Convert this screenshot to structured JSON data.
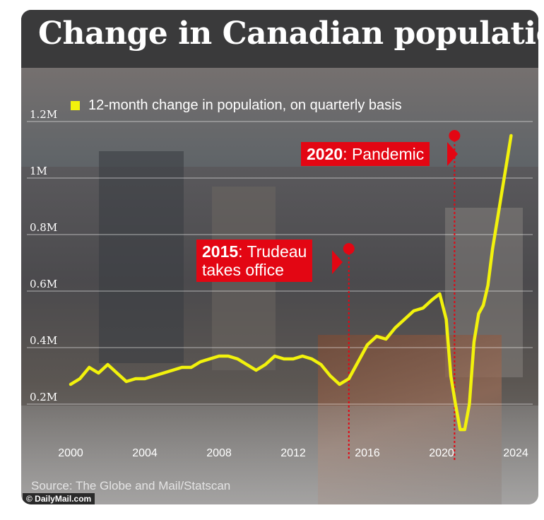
{
  "title": "Change in Canadian population",
  "legend_label": "12-month change in population, on quarterly basis",
  "annotations": {
    "a2020": {
      "year": "2020",
      "text": ": Pandemic"
    },
    "a2015": {
      "year": "2015",
      "text": ": Trudeau",
      "text2": "takes office"
    }
  },
  "source": "Source: The Globe and Mail/Statscan",
  "credit": "© DailyMail.com",
  "colors": {
    "line": "#f2f20c",
    "accent": "#e30613",
    "title_bg": "#3a3a3b"
  },
  "chart_data": {
    "type": "line",
    "title": "Change in Canadian population",
    "series": [
      {
        "name": "12-month change in population, on quarterly basis",
        "x": [
          2000.0,
          2000.5,
          2001.0,
          2001.5,
          2002.0,
          2002.5,
          2003.0,
          2003.5,
          2004.0,
          2004.5,
          2005.0,
          2005.5,
          2006.0,
          2006.5,
          2007.0,
          2007.5,
          2008.0,
          2008.5,
          2009.0,
          2009.5,
          2010.0,
          2010.5,
          2011.0,
          2011.5,
          2012.0,
          2012.5,
          2013.0,
          2013.5,
          2014.0,
          2014.5,
          2015.0,
          2015.5,
          2016.0,
          2016.5,
          2017.0,
          2017.5,
          2018.0,
          2018.5,
          2019.0,
          2019.5,
          2019.9,
          2020.25,
          2020.5,
          2020.75,
          2021.0,
          2021.25,
          2021.5,
          2021.75,
          2022.0,
          2022.25,
          2022.5,
          2022.75,
          2023.0,
          2023.25,
          2023.5,
          2023.75
        ],
        "values": [
          0.27,
          0.29,
          0.33,
          0.31,
          0.34,
          0.31,
          0.28,
          0.29,
          0.29,
          0.3,
          0.31,
          0.32,
          0.33,
          0.33,
          0.35,
          0.36,
          0.37,
          0.37,
          0.36,
          0.34,
          0.32,
          0.34,
          0.37,
          0.36,
          0.36,
          0.37,
          0.36,
          0.34,
          0.3,
          0.27,
          0.29,
          0.35,
          0.41,
          0.44,
          0.43,
          0.47,
          0.5,
          0.53,
          0.54,
          0.57,
          0.59,
          0.5,
          0.3,
          0.2,
          0.11,
          0.11,
          0.2,
          0.42,
          0.52,
          0.55,
          0.62,
          0.75,
          0.85,
          0.95,
          1.05,
          1.15
        ]
      }
    ],
    "xlabel": "",
    "ylabel": "",
    "x_ticks": [
      2000,
      2004,
      2008,
      2012,
      2016,
      2020,
      2024
    ],
    "x_tick_labels": [
      "2000",
      "2004",
      "2008",
      "2012",
      "2016",
      "2020",
      "2024"
    ],
    "y_ticks": [
      0.2,
      0.4,
      0.6,
      0.8,
      1.0,
      1.2
    ],
    "y_tick_labels": [
      "0.2M",
      "0.4M",
      "0.6M",
      "0.8M",
      "1M",
      "1.2M"
    ],
    "xlim": [
      2000,
      2024
    ],
    "ylim": [
      0.1,
      1.2
    ],
    "grid": "horizontal",
    "markers": [
      {
        "x": 2015.0,
        "y": 0.75,
        "label": "2015"
      },
      {
        "x": 2020.7,
        "y": 1.15,
        "label": "2020"
      }
    ]
  }
}
